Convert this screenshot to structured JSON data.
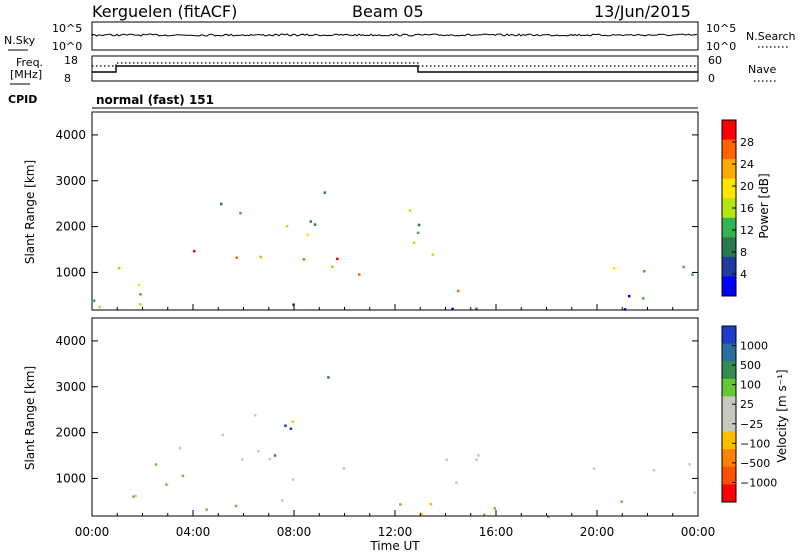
{
  "header": {
    "station": "Kerguelen (fitACF)",
    "beam": "Beam 05",
    "date": "13/Jun/2015"
  },
  "top_panels": {
    "nsky_label": "N.Sky",
    "nsky_ticks": [
      "10^5",
      "10^0"
    ],
    "nsearch_label": "N.Search",
    "nsearch_ticks": [
      "10^5",
      "10^0"
    ],
    "freq_label": "Freq.",
    "freq_unit": "[MHz]",
    "freq_ticks": [
      "18",
      "8"
    ],
    "nave_label": "Nave",
    "nave_ticks": [
      "60",
      "0"
    ],
    "cpid_label": "CPID",
    "cpid_value": "normal (fast) 151"
  },
  "chart_data": [
    {
      "type": "heatmap",
      "title": "",
      "ylabel": "Slant Range [km]",
      "xlabel": "",
      "ylim": [
        180,
        4500
      ],
      "yticks": [
        "1000",
        "2000",
        "3000",
        "4000"
      ],
      "colorbar_label": "Power [dB]",
      "colorbar_ticks": [
        "28",
        "24",
        "20",
        "16",
        "12",
        "8",
        "4"
      ],
      "colorbar_colors": [
        "#ff0000",
        "#ff6400",
        "#ffaa00",
        "#ffe600",
        "#b4e614",
        "#32b450",
        "#287850",
        "#1e3ca0",
        "#0000ff"
      ],
      "scatter_regions": [
        {
          "t0": 4.0,
          "t1": 12.0,
          "r0": 800,
          "r1": 1550,
          "level": "high"
        },
        {
          "t0": 13.0,
          "t1": 14.8,
          "r0": 550,
          "r1": 1150,
          "level": "high"
        },
        {
          "t0": 3.8,
          "t1": 6.0,
          "r0": 1700,
          "r1": 2600,
          "level": "mid"
        },
        {
          "t0": 7.5,
          "t1": 10.5,
          "r0": 1600,
          "r1": 3200,
          "level": "mid"
        },
        {
          "t0": 0.0,
          "t1": 2.0,
          "r0": 700,
          "r1": 1700,
          "level": "mid"
        },
        {
          "t0": 11.8,
          "t1": 15.0,
          "r0": 1200,
          "r1": 2500,
          "level": "mid"
        },
        {
          "t0": 19.5,
          "t1": 24.0,
          "r0": 700,
          "r1": 1400,
          "level": "mid"
        },
        {
          "t0": 0.0,
          "t1": 24.0,
          "r0": 180,
          "r1": 550,
          "level": "low"
        }
      ]
    },
    {
      "type": "heatmap",
      "title": "",
      "ylabel": "Slant Range [km]",
      "xlabel": "Time UT",
      "ylim": [
        180,
        4500
      ],
      "yticks": [
        "1000",
        "2000",
        "3000",
        "4000"
      ],
      "xticks": [
        "00:00",
        "04:00",
        "08:00",
        "12:00",
        "16:00",
        "20:00",
        "00:00"
      ],
      "xlim": [
        0,
        24
      ],
      "colorbar_label": "Velocity [m s⁻¹]",
      "colorbar_ticks": [
        "1000",
        "500",
        "100",
        "25",
        "−25",
        "−100",
        "−500",
        "−1000"
      ],
      "colorbar_colors": [
        "#1e3cc8",
        "#286ea0",
        "#328c50",
        "#64c832",
        "#c8c8be",
        "#c8c8be",
        "#ffbe00",
        "#ff8200",
        "#ff5000",
        "#ff0000"
      ],
      "scatter_regions": [
        {
          "t0": 4.0,
          "t1": 12.0,
          "r0": 1000,
          "r1": 1500,
          "level": "gray"
        },
        {
          "t0": 4.5,
          "t1": 7.5,
          "r0": 1300,
          "r1": 2500,
          "level": "gray"
        },
        {
          "t0": 13.0,
          "t1": 14.8,
          "r0": 550,
          "r1": 1100,
          "level": "gray"
        },
        {
          "t0": 12.5,
          "t1": 15.5,
          "r0": 1400,
          "r1": 2400,
          "level": "gray"
        },
        {
          "t0": 0.0,
          "t1": 4.0,
          "r0": 300,
          "r1": 1700,
          "level": "green"
        },
        {
          "t0": 0.0,
          "t1": 24.0,
          "r0": 180,
          "r1": 550,
          "level": "green"
        },
        {
          "t0": 19.5,
          "t1": 24.0,
          "r0": 700,
          "r1": 1400,
          "level": "gray"
        },
        {
          "t0": 7.5,
          "t1": 10.5,
          "r0": 2000,
          "r1": 3300,
          "level": "orange"
        }
      ]
    }
  ]
}
